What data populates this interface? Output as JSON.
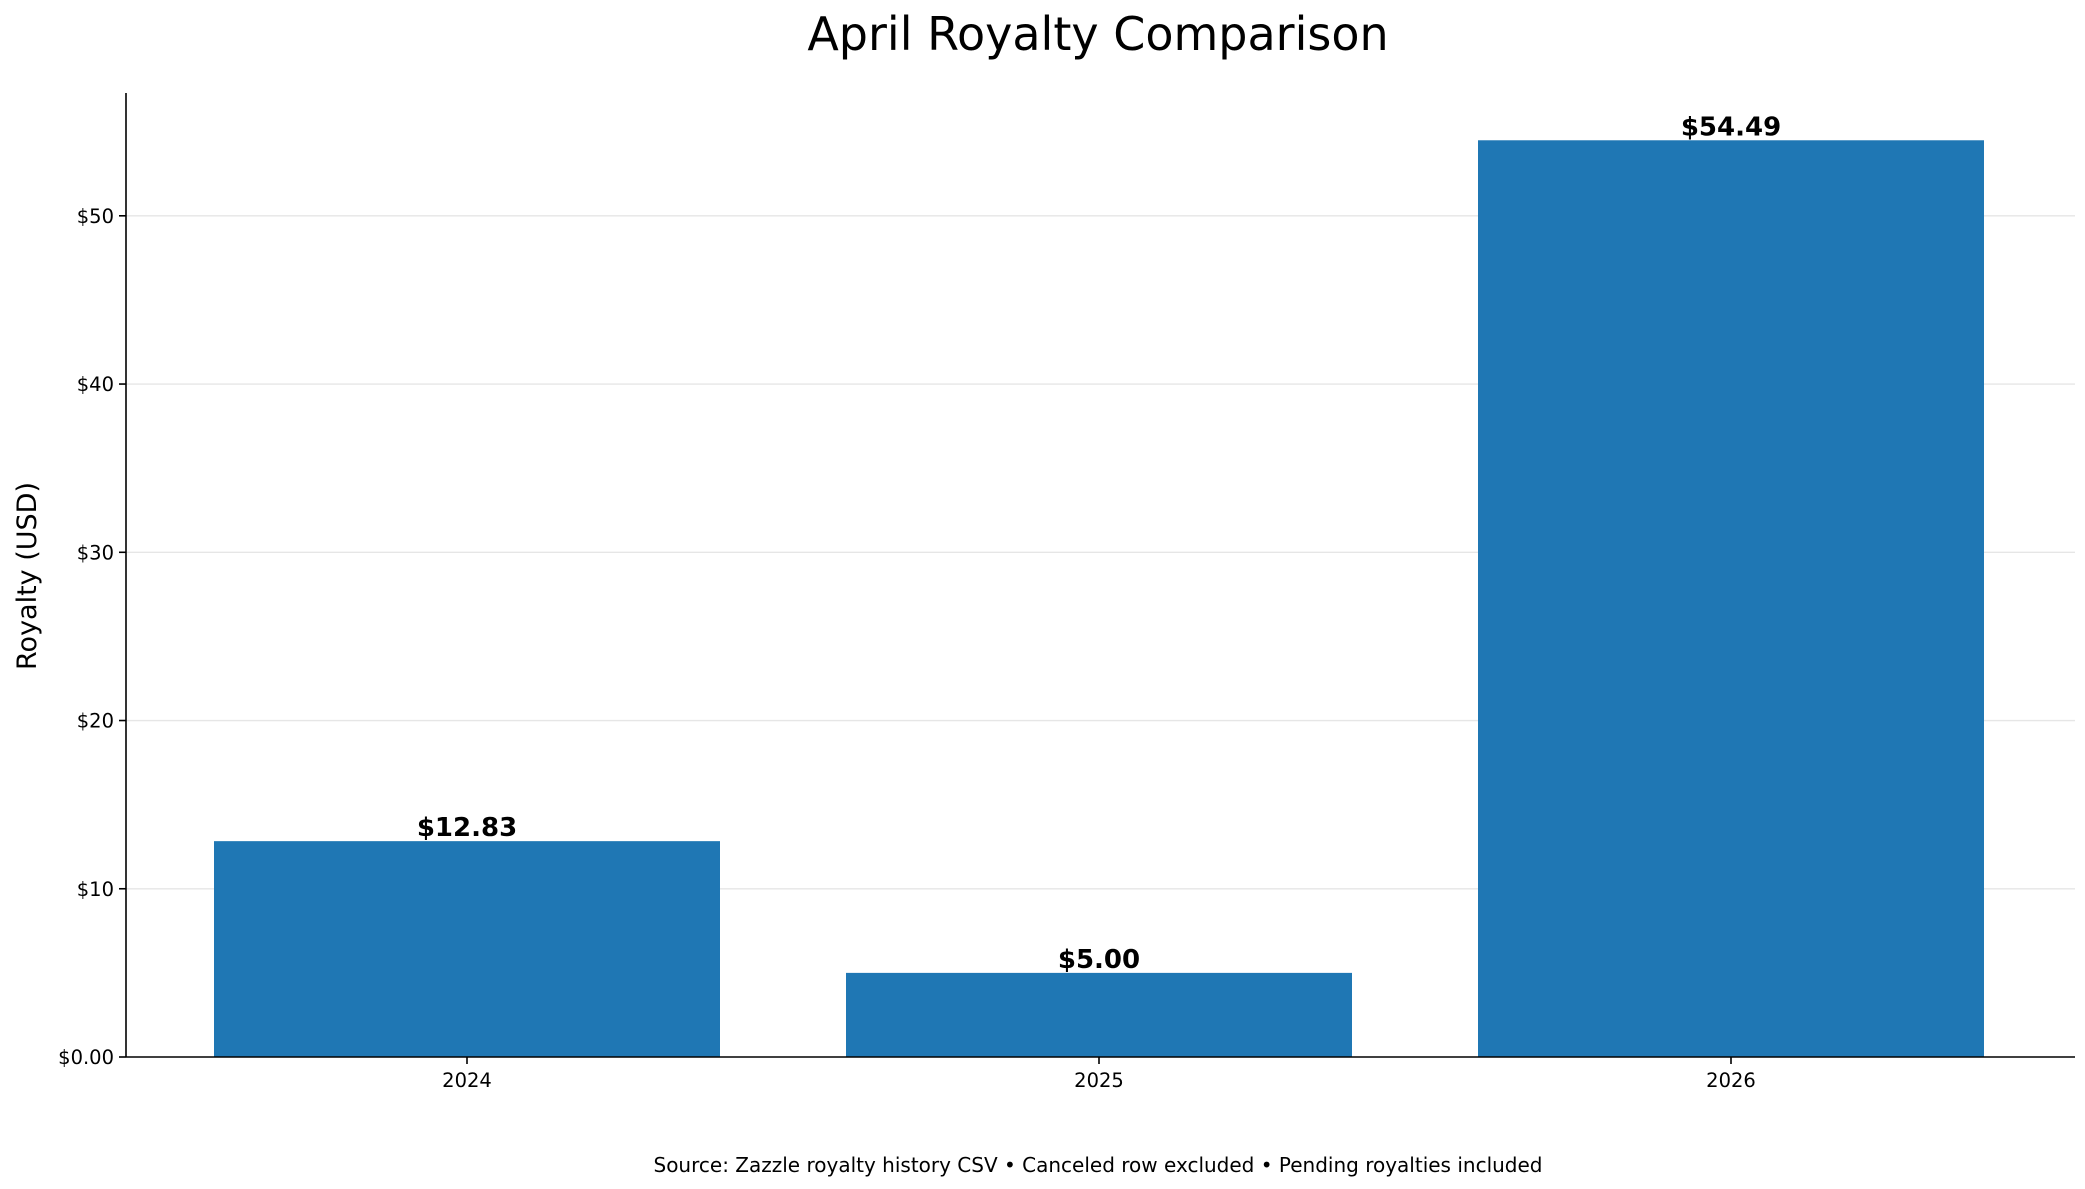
{
  "chart_data": {
    "type": "bar",
    "title": "April Royalty Comparison",
    "xlabel": "",
    "ylabel": "Royalty (USD)",
    "categories": [
      "2024",
      "2025",
      "2026"
    ],
    "values": [
      12.83,
      5.0,
      54.49
    ],
    "data_labels": [
      "$12.83",
      "$5.00",
      "$54.49"
    ],
    "ylim": [
      0,
      57.3
    ],
    "yticks": [
      0,
      10,
      20,
      30,
      40,
      50
    ],
    "ytick_labels": [
      "$0.00",
      "$10",
      "$20",
      "$30",
      "$40",
      "$50"
    ],
    "grid": "horizontal",
    "legend": "none",
    "bar_color": "#1f77b4",
    "grid_color": "#e6e6e6",
    "caption": "Source: Zazzle royalty history CSV • Canceled row excluded • Pending royalties included"
  }
}
